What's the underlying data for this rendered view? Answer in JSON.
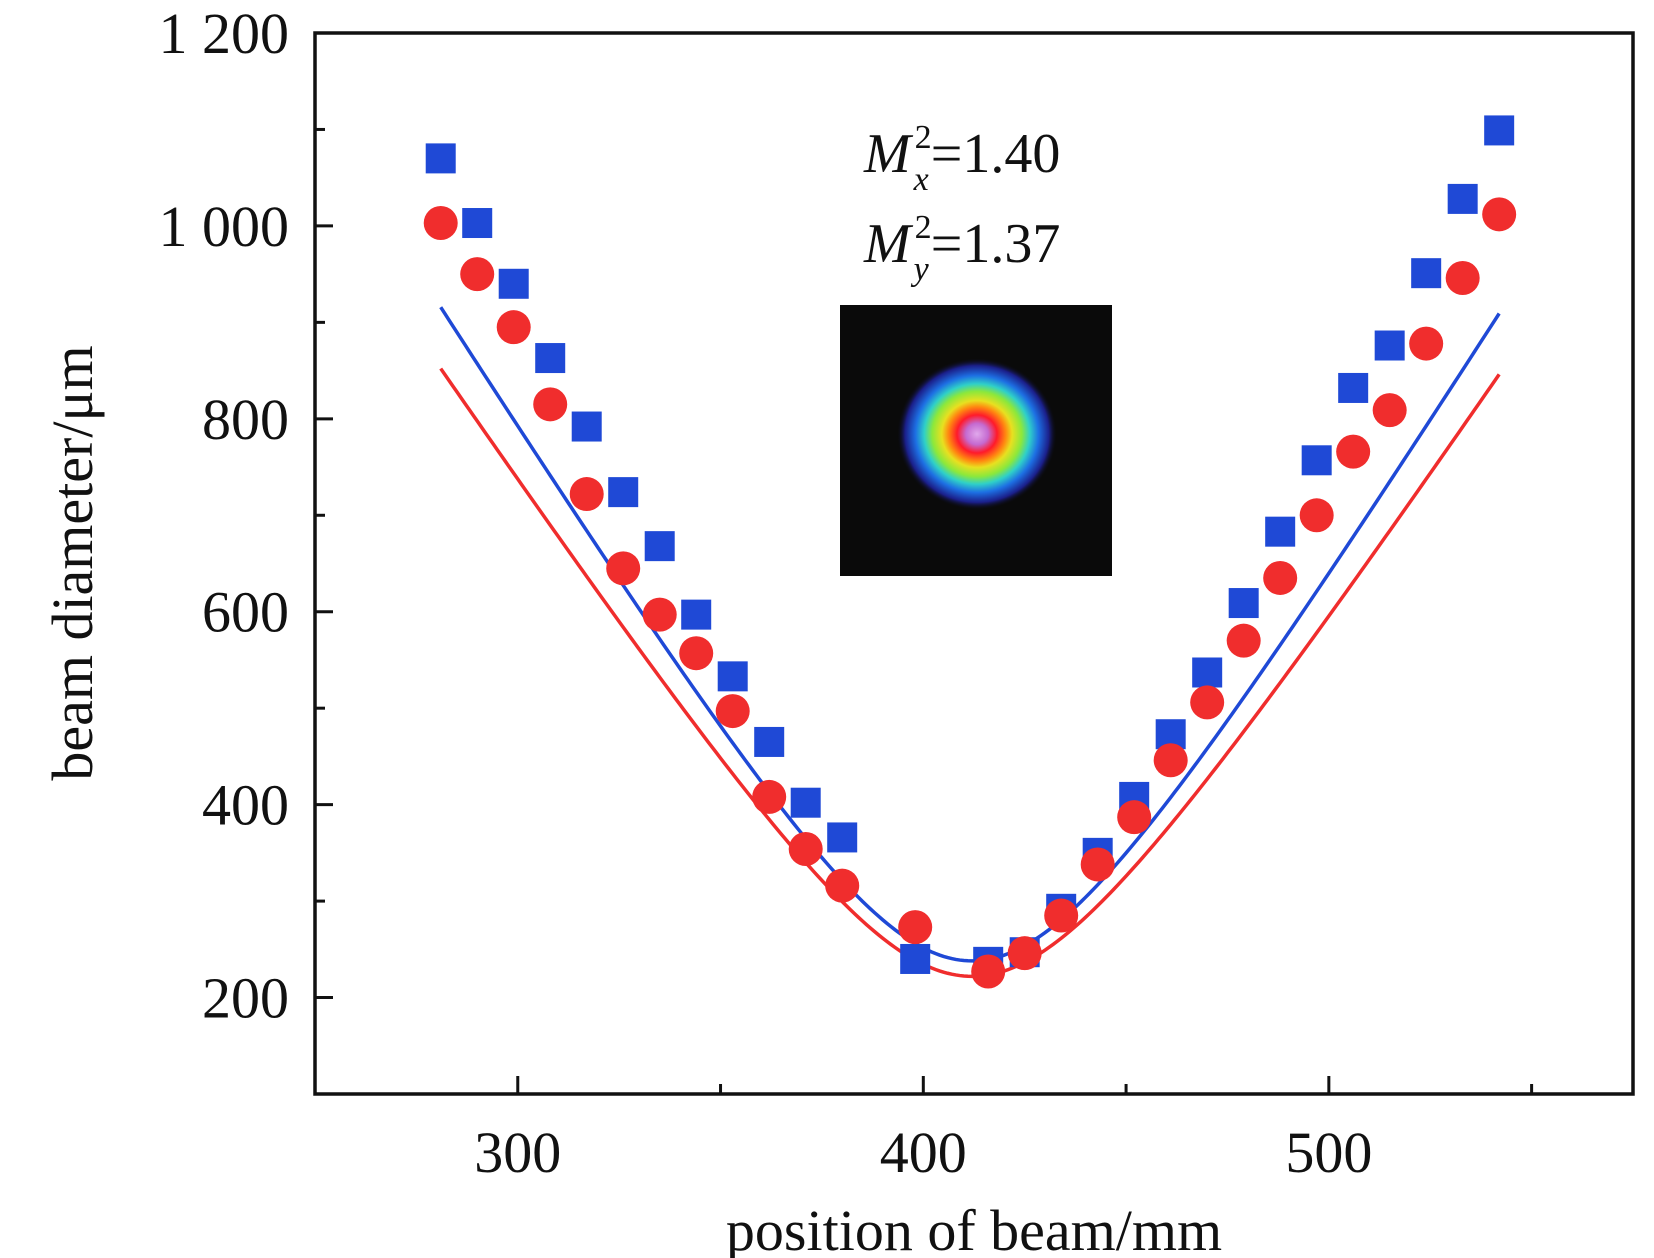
{
  "chart_data": {
    "type": "scatter",
    "title": "",
    "xlabel": "position of beam/mm",
    "ylabel": "beam diameter/μm",
    "xlim": [
      250,
      575
    ],
    "ylim": [
      100,
      1200
    ],
    "x_ticks": [
      300,
      400,
      500
    ],
    "x_tick_labels": [
      "300",
      "400",
      "500"
    ],
    "x_minor_ticks": [
      350,
      450,
      550
    ],
    "y_ticks": [
      200,
      400,
      600,
      800,
      1000,
      1200
    ],
    "y_tick_labels": [
      "200",
      "400",
      "600",
      "800",
      "1 000",
      "1 200"
    ],
    "y_minor_ticks": [
      300,
      500,
      700,
      900,
      1100
    ],
    "grid": false,
    "legend": "none",
    "series": [
      {
        "marker": "square",
        "color": "#1f49d6",
        "points": [
          [
            281,
            1070
          ],
          [
            290,
            1003
          ],
          [
            299,
            940
          ],
          [
            308,
            863
          ],
          [
            317,
            792
          ],
          [
            326,
            724
          ],
          [
            335,
            668
          ],
          [
            344,
            597
          ],
          [
            353,
            533
          ],
          [
            362,
            465
          ],
          [
            371,
            402
          ],
          [
            380,
            366
          ],
          [
            398,
            240
          ],
          [
            416,
            237
          ],
          [
            425,
            247
          ],
          [
            434,
            292
          ],
          [
            443,
            350
          ],
          [
            452,
            408
          ],
          [
            461,
            473
          ],
          [
            470,
            537
          ],
          [
            479,
            609
          ],
          [
            488,
            683
          ],
          [
            497,
            757
          ],
          [
            506,
            832
          ],
          [
            515,
            876
          ],
          [
            524,
            951
          ],
          [
            533,
            1028
          ],
          [
            542,
            1099
          ]
        ],
        "fit": {
          "x0": 412,
          "w0": 238,
          "slope": 6.75,
          "xmin": 281,
          "xmax": 542
        }
      },
      {
        "marker": "circle",
        "color": "#f02d2d",
        "points": [
          [
            281,
            1003
          ],
          [
            290,
            950
          ],
          [
            299,
            895
          ],
          [
            308,
            815
          ],
          [
            317,
            722
          ],
          [
            326,
            645
          ],
          [
            335,
            597
          ],
          [
            344,
            557
          ],
          [
            353,
            497
          ],
          [
            362,
            408
          ],
          [
            371,
            354
          ],
          [
            380,
            316
          ],
          [
            398,
            273
          ],
          [
            416,
            227
          ],
          [
            425,
            246
          ],
          [
            434,
            285
          ],
          [
            443,
            338
          ],
          [
            452,
            387
          ],
          [
            461,
            446
          ],
          [
            470,
            506
          ],
          [
            479,
            570
          ],
          [
            488,
            635
          ],
          [
            497,
            700
          ],
          [
            506,
            766
          ],
          [
            515,
            809
          ],
          [
            524,
            878
          ],
          [
            533,
            946
          ],
          [
            542,
            1012
          ]
        ],
        "fit": {
          "x0": 412,
          "w0": 222,
          "slope": 6.28,
          "xmin": 281,
          "xmax": 542
        }
      }
    ],
    "annotations": {
      "mx_base": "M",
      "mx_sup": "2",
      "mx_sub": "x",
      "mx_value": "=1.40",
      "my_base": "M",
      "my_sup": "2",
      "my_sub": "y",
      "my_value": "=1.37"
    },
    "inset": {
      "type": "beam-profile-image",
      "colors": [
        "#0a0a0a",
        "#1b1f8a",
        "#1d6fe3",
        "#2fd0c8",
        "#8ce83b",
        "#e8e020",
        "#ff8a10",
        "#ff1a2a",
        "#c84fd6"
      ]
    }
  }
}
